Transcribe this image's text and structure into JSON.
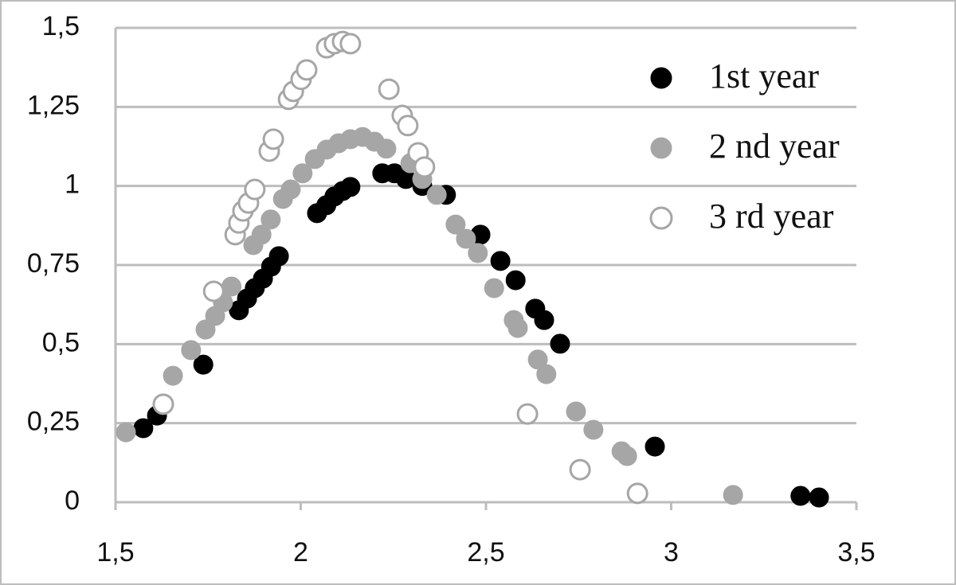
{
  "chart_data": {
    "type": "scatter",
    "xlim": [
      1.5,
      3.5
    ],
    "xticks": [
      {
        "value": 1.5,
        "label": "1,5"
      },
      2,
      {
        "value": 2.5,
        "label": "2,5"
      },
      3,
      {
        "value": 3.5,
        "label": "3,5"
      }
    ],
    "ylim": [
      0,
      1.5
    ],
    "yticks": [
      0,
      {
        "value": 0.25,
        "label": "0,25"
      },
      {
        "value": 0.5,
        "label": "0,5"
      },
      {
        "value": 0.75,
        "label": "0,75"
      },
      1,
      {
        "value": 1.25,
        "label": "1,25"
      },
      {
        "value": 1.5,
        "label": "1,5"
      }
    ],
    "grid": true,
    "legend": "upper-right",
    "series": [
      {
        "name": "1st year",
        "color": "#000000",
        "marker": "filled",
        "x": [
          1.575,
          1.612,
          1.737,
          1.833,
          1.855,
          1.876,
          1.898,
          1.92,
          1.941,
          2.044,
          2.069,
          2.091,
          2.113,
          2.134,
          2.22,
          2.253,
          2.284,
          2.328,
          2.392,
          2.485,
          2.539,
          2.58,
          2.633,
          2.657,
          2.7,
          2.956,
          3.349,
          3.399
        ],
        "values": [
          0.234,
          0.274,
          0.435,
          0.607,
          0.644,
          0.677,
          0.707,
          0.745,
          0.778,
          0.914,
          0.939,
          0.967,
          0.984,
          0.997,
          1.04,
          1.04,
          1.022,
          1.0,
          0.972,
          0.846,
          0.763,
          0.702,
          0.612,
          0.576,
          0.501,
          0.176,
          0.02,
          0.015
        ]
      },
      {
        "name": "2 nd year",
        "color": "#a6a6a6",
        "marker": "filled",
        "x": [
          1.528,
          1.655,
          1.704,
          1.743,
          1.769,
          1.79,
          1.813,
          1.872,
          1.894,
          1.919,
          1.952,
          1.973,
          2.005,
          2.038,
          2.07,
          2.102,
          2.134,
          2.167,
          2.199,
          2.231,
          2.296,
          2.328,
          2.367,
          2.418,
          2.446,
          2.478,
          2.522,
          2.575,
          2.586,
          2.64,
          2.663,
          2.743,
          2.79,
          2.866,
          2.881,
          3.167
        ],
        "values": [
          0.221,
          0.4,
          0.481,
          0.546,
          0.589,
          0.632,
          0.682,
          0.813,
          0.846,
          0.894,
          0.959,
          0.989,
          1.04,
          1.085,
          1.115,
          1.135,
          1.148,
          1.155,
          1.14,
          1.118,
          1.072,
          1.022,
          0.972,
          0.878,
          0.833,
          0.788,
          0.677,
          0.576,
          0.551,
          0.451,
          0.405,
          0.287,
          0.229,
          0.161,
          0.146,
          0.023
        ]
      },
      {
        "name": "3 rd year",
        "color": "#a6a6a6",
        "marker": "open",
        "x": [
          1.629,
          1.765,
          1.823,
          1.833,
          1.844,
          1.859,
          1.876,
          1.915,
          1.926,
          1.967,
          1.98,
          2.001,
          2.016,
          2.07,
          2.091,
          2.113,
          2.134,
          2.238,
          2.274,
          2.289,
          2.317,
          2.334,
          2.612,
          2.754,
          2.909
        ],
        "values": [
          0.31,
          0.667,
          0.846,
          0.883,
          0.921,
          0.946,
          0.989,
          1.11,
          1.148,
          1.274,
          1.299,
          1.337,
          1.367,
          1.437,
          1.45,
          1.457,
          1.45,
          1.306,
          1.223,
          1.191,
          1.105,
          1.06,
          0.279,
          0.103,
          0.028
        ]
      }
    ]
  }
}
